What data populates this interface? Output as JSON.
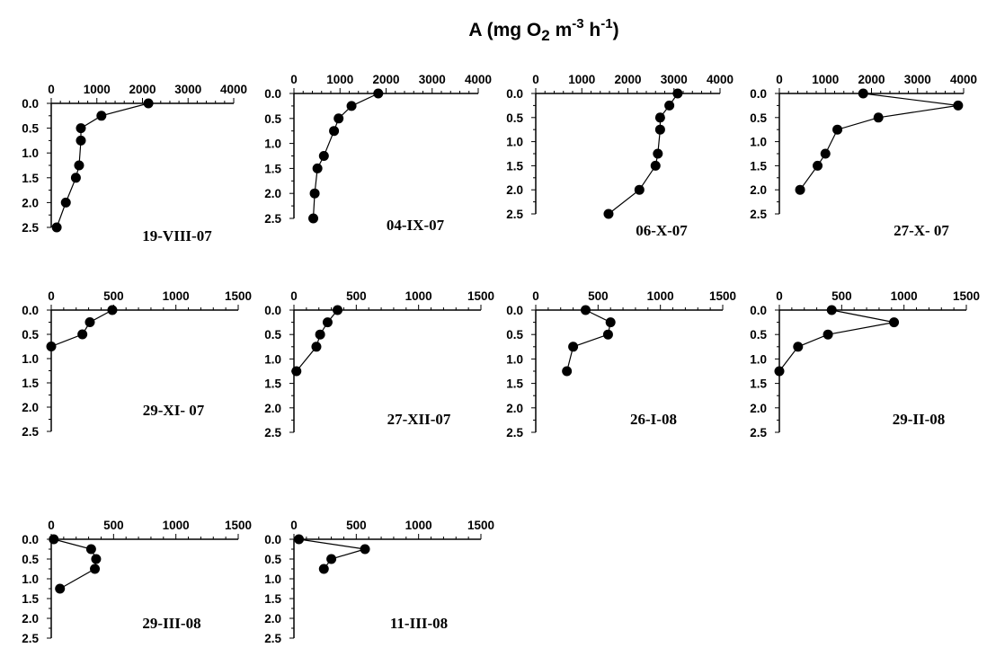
{
  "figure": {
    "title": {
      "main": "A (mg O",
      "sub2": "2",
      "m": " m",
      "sup3": "-3",
      "h": " h",
      "sup1": "-1",
      "close": ")"
    }
  },
  "chart_data": [
    {
      "type": "line",
      "title": "19-VIII-07",
      "xlabel": "",
      "ylabel": "",
      "xlim": [
        0,
        4000
      ],
      "ylim": [
        0.0,
        2.5
      ],
      "x_tick_labels": [
        "0",
        "1000",
        "2000",
        "3000",
        "4000"
      ],
      "y_tick_labels": [
        "0.0",
        "0.5",
        "1.0",
        "1.5",
        "2.0",
        "2.5"
      ],
      "points": [
        {
          "x": 2130,
          "y": 0.0
        },
        {
          "x": 1100,
          "y": 0.25
        },
        {
          "x": 650,
          "y": 0.5
        },
        {
          "x": 650,
          "y": 0.75
        },
        {
          "x": 610,
          "y": 1.25
        },
        {
          "x": 540,
          "y": 1.5
        },
        {
          "x": 320,
          "y": 2.0
        },
        {
          "x": 120,
          "y": 2.5
        }
      ]
    },
    {
      "type": "line",
      "title": "04-IX-07",
      "xlabel": "",
      "ylabel": "",
      "xlim": [
        0,
        4000
      ],
      "ylim": [
        0.0,
        2.5
      ],
      "x_tick_labels": [
        "0",
        "1000",
        "2000",
        "3000",
        "4000"
      ],
      "y_tick_labels": [
        "0.0",
        "0.5",
        "1.0",
        "1.5",
        "2.0",
        "2.5"
      ],
      "points": [
        {
          "x": 1830,
          "y": 0.0
        },
        {
          "x": 1250,
          "y": 0.25
        },
        {
          "x": 970,
          "y": 0.5
        },
        {
          "x": 870,
          "y": 0.75
        },
        {
          "x": 650,
          "y": 1.25
        },
        {
          "x": 510,
          "y": 1.5
        },
        {
          "x": 450,
          "y": 2.0
        },
        {
          "x": 420,
          "y": 2.5
        }
      ]
    },
    {
      "type": "line",
      "title": "06-X-07",
      "xlabel": "",
      "ylabel": "",
      "xlim": [
        0,
        4000
      ],
      "ylim": [
        0.0,
        2.5
      ],
      "x_tick_labels": [
        "0",
        "1000",
        "2000",
        "3000",
        "4000"
      ],
      "y_tick_labels": [
        "0.0",
        "0.5",
        "1.0",
        "1.5",
        "2.0",
        "2.5"
      ],
      "points": [
        {
          "x": 3080,
          "y": 0.0
        },
        {
          "x": 2900,
          "y": 0.25
        },
        {
          "x": 2700,
          "y": 0.5
        },
        {
          "x": 2700,
          "y": 0.75
        },
        {
          "x": 2650,
          "y": 1.25
        },
        {
          "x": 2600,
          "y": 1.5
        },
        {
          "x": 2250,
          "y": 2.0
        },
        {
          "x": 1580,
          "y": 2.5
        }
      ]
    },
    {
      "type": "line",
      "title": "27-X- 07",
      "xlabel": "",
      "ylabel": "",
      "xlim": [
        0,
        4000
      ],
      "ylim": [
        0.0,
        2.5
      ],
      "x_tick_labels": [
        "0",
        "1000",
        "2000",
        "3000",
        "4000"
      ],
      "y_tick_labels": [
        "0.0",
        "0.5",
        "1.0",
        "1.5",
        "2.0",
        "2.5"
      ],
      "points": [
        {
          "x": 1820,
          "y": 0.0
        },
        {
          "x": 3880,
          "y": 0.25
        },
        {
          "x": 2150,
          "y": 0.5
        },
        {
          "x": 1260,
          "y": 0.75
        },
        {
          "x": 1000,
          "y": 1.25
        },
        {
          "x": 830,
          "y": 1.5
        },
        {
          "x": 450,
          "y": 2.0
        }
      ]
    },
    {
      "type": "line",
      "title": "29-XI- 07",
      "xlabel": "",
      "ylabel": "",
      "xlim": [
        0,
        1500
      ],
      "ylim": [
        0.0,
        2.5
      ],
      "x_tick_labels": [
        "0",
        "500",
        "1000",
        "1500"
      ],
      "y_tick_labels": [
        "0.0",
        "0.5",
        "1.0",
        "1.5",
        "2.0",
        "2.5"
      ],
      "points": [
        {
          "x": 490,
          "y": 0.0
        },
        {
          "x": 310,
          "y": 0.25
        },
        {
          "x": 250,
          "y": 0.5
        },
        {
          "x": 0,
          "y": 0.75
        }
      ]
    },
    {
      "type": "line",
      "title": "27-XII-07",
      "xlabel": "",
      "ylabel": "",
      "xlim": [
        0,
        1500
      ],
      "ylim": [
        0.0,
        2.5
      ],
      "x_tick_labels": [
        "0",
        "500",
        "1000",
        "1500"
      ],
      "y_tick_labels": [
        "0.0",
        "0.5",
        "1.0",
        "1.5",
        "2.0",
        "2.5"
      ],
      "points": [
        {
          "x": 350,
          "y": 0.0
        },
        {
          "x": 270,
          "y": 0.25
        },
        {
          "x": 210,
          "y": 0.5
        },
        {
          "x": 180,
          "y": 0.75
        },
        {
          "x": 20,
          "y": 1.25
        }
      ]
    },
    {
      "type": "line",
      "title": "26-I-08",
      "xlabel": "",
      "ylabel": "",
      "xlim": [
        0,
        1500
      ],
      "ylim": [
        0.0,
        2.5
      ],
      "x_tick_labels": [
        "0",
        "500",
        "1000",
        "1500"
      ],
      "y_tick_labels": [
        "0.0",
        "0.5",
        "1.0",
        "1.5",
        "2.0",
        "2.5"
      ],
      "points": [
        {
          "x": 400,
          "y": 0.0
        },
        {
          "x": 600,
          "y": 0.25
        },
        {
          "x": 580,
          "y": 0.5
        },
        {
          "x": 300,
          "y": 0.75
        },
        {
          "x": 250,
          "y": 1.25
        }
      ]
    },
    {
      "type": "line",
      "title": "29-II-08",
      "xlabel": "",
      "ylabel": "",
      "xlim": [
        0,
        1500
      ],
      "ylim": [
        0.0,
        2.5
      ],
      "x_tick_labels": [
        "0",
        "500",
        "1000",
        "1500"
      ],
      "y_tick_labels": [
        "0.0",
        "0.5",
        "1.0",
        "1.5",
        "2.0",
        "2.5"
      ],
      "points": [
        {
          "x": 420,
          "y": 0.0
        },
        {
          "x": 920,
          "y": 0.25
        },
        {
          "x": 390,
          "y": 0.5
        },
        {
          "x": 150,
          "y": 0.75
        },
        {
          "x": 0,
          "y": 1.25
        }
      ]
    },
    {
      "type": "line",
      "title": "29-III-08",
      "xlabel": "",
      "ylabel": "",
      "xlim": [
        0,
        1500
      ],
      "ylim": [
        0.0,
        2.5
      ],
      "x_tick_labels": [
        "0",
        "500",
        "1000",
        "1500"
      ],
      "y_tick_labels": [
        "0.0",
        "0.5",
        "1.0",
        "1.5",
        "2.0",
        "2.5"
      ],
      "points": [
        {
          "x": 20,
          "y": 0.0
        },
        {
          "x": 320,
          "y": 0.25
        },
        {
          "x": 360,
          "y": 0.5
        },
        {
          "x": 350,
          "y": 0.75
        },
        {
          "x": 70,
          "y": 1.25
        }
      ]
    },
    {
      "type": "line",
      "title": "11-III-08",
      "xlabel": "",
      "ylabel": "",
      "xlim": [
        0,
        1500
      ],
      "ylim": [
        0.0,
        2.5
      ],
      "x_tick_labels": [
        "0",
        "500",
        "1000",
        "1500"
      ],
      "y_tick_labels": [
        "0.0",
        "0.5",
        "1.0",
        "1.5",
        "2.0",
        "2.5"
      ],
      "points": [
        {
          "x": 40,
          "y": 0.0
        },
        {
          "x": 570,
          "y": 0.25
        },
        {
          "x": 300,
          "y": 0.5
        },
        {
          "x": 240,
          "y": 0.75
        }
      ]
    }
  ]
}
